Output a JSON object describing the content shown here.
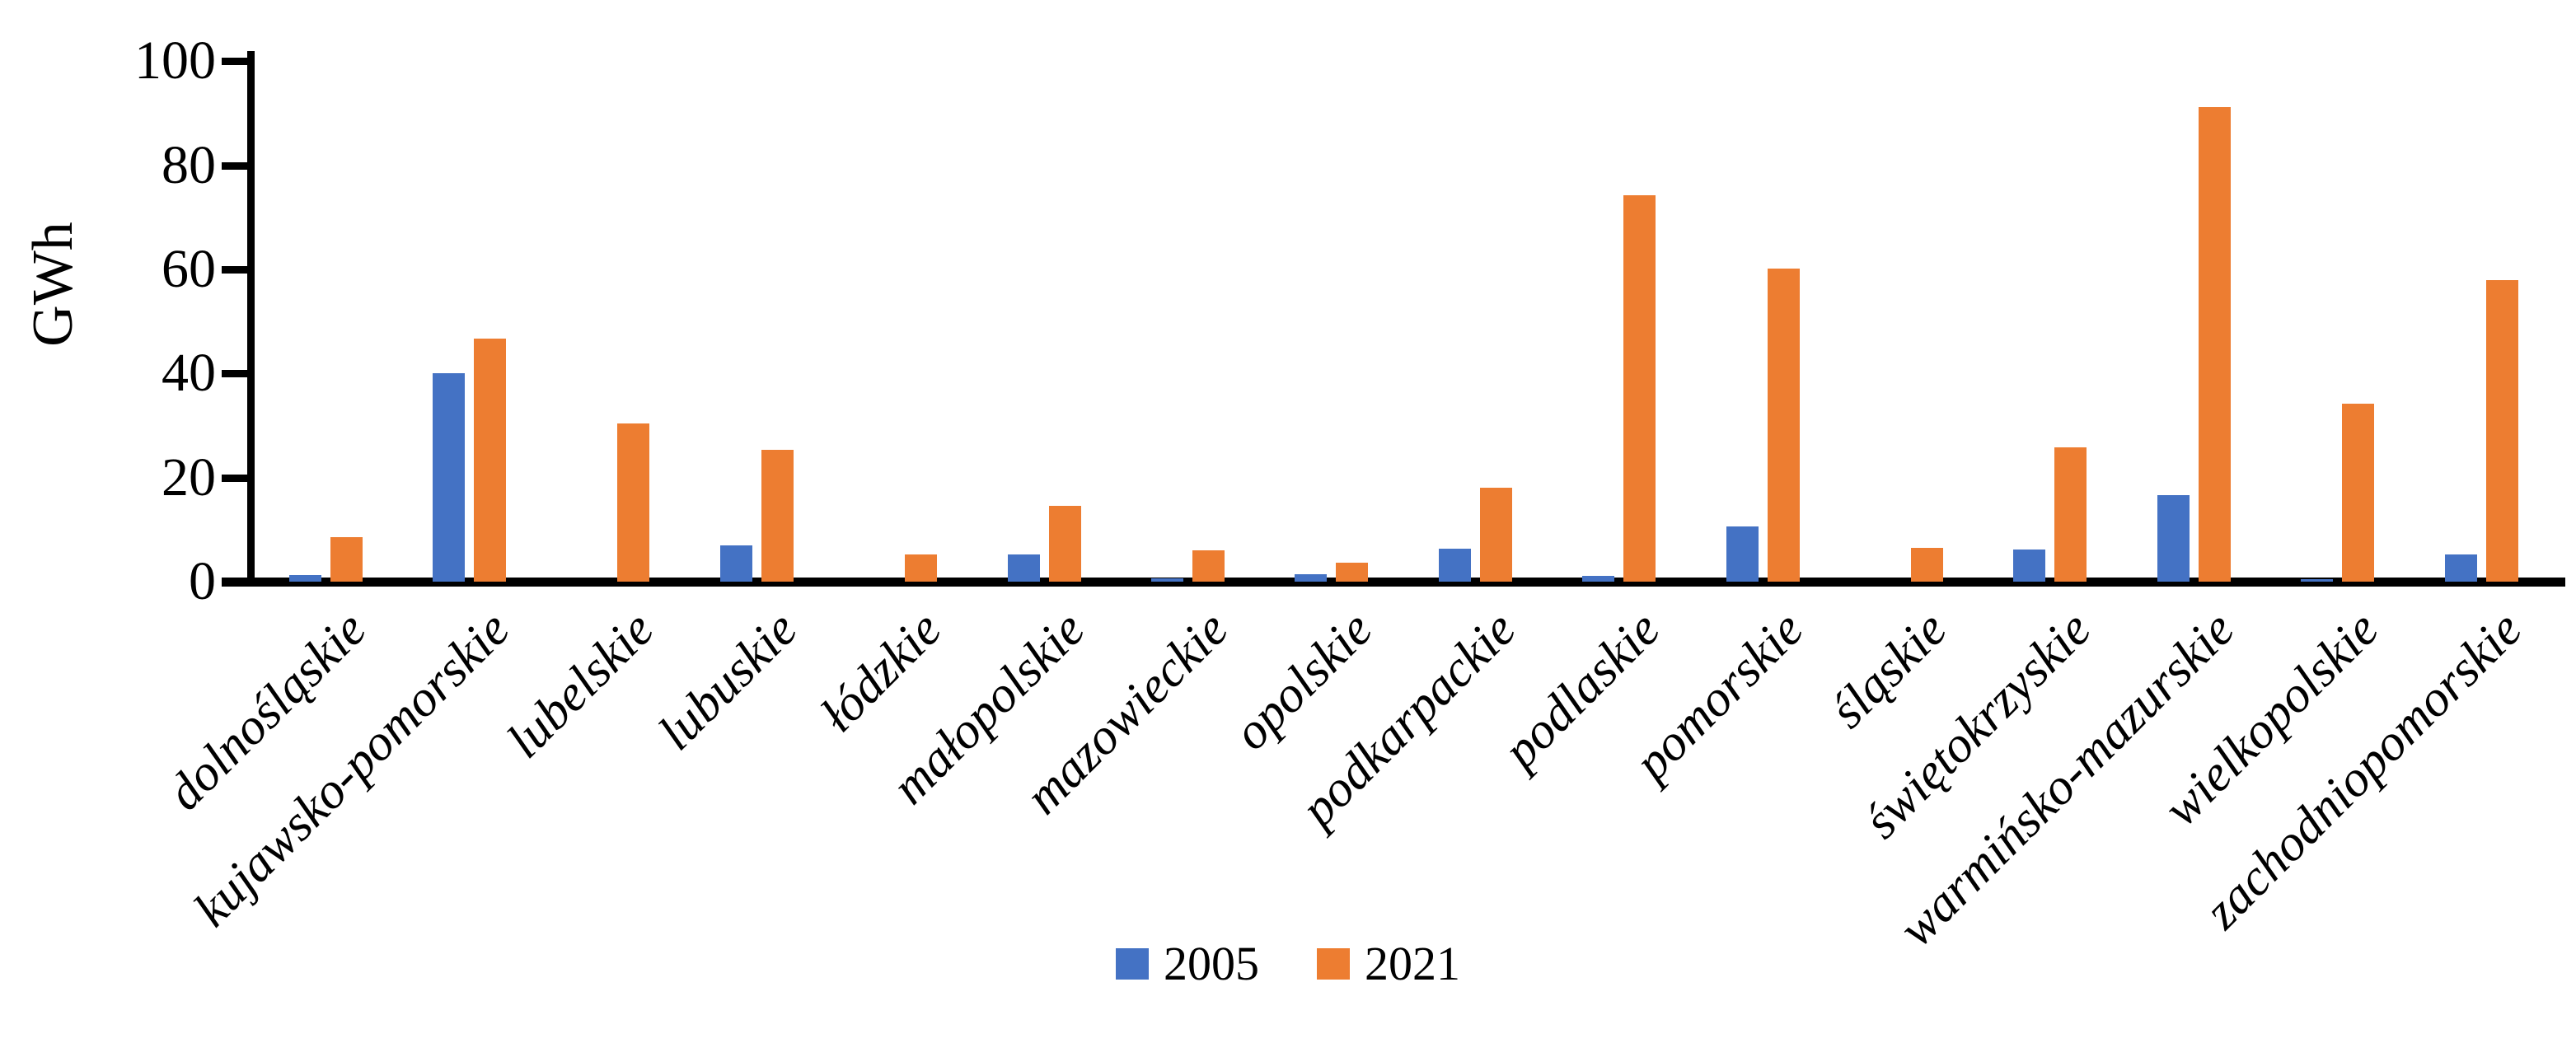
{
  "chart_data": {
    "type": "bar",
    "title": "",
    "xlabel": "",
    "ylabel": "GWh",
    "ylim": [
      0,
      100
    ],
    "y_ticks": [
      0,
      20,
      40,
      60,
      80,
      100
    ],
    "grid": false,
    "legend_position": "bottom-center",
    "categories": [
      "dolnośląskie",
      "kujawsko-pomorskie",
      "lubelskie",
      "lubuskie",
      "łódzkie",
      "małopolskie",
      "mazowieckie",
      "opolskie",
      "podkarpackie",
      "podlaskie",
      "pomorskie",
      "śląskie",
      "świętokrzyskie",
      "warmińsko-mazurskie",
      "wielkopolskie",
      "zachodniopomorskie"
    ],
    "series": [
      {
        "name": "2005",
        "color": "#4472C4",
        "values": [
          1.2,
          40,
          0,
          6.9,
          0,
          5.2,
          0.7,
          1.4,
          6.4,
          1.1,
          10.6,
          0,
          6.1,
          16.6,
          0.5,
          5.3
        ]
      },
      {
        "name": "2021",
        "color": "#ED7D31",
        "values": [
          8.6,
          46.7,
          30.4,
          25.4,
          5.3,
          14.5,
          6.0,
          3.6,
          18.1,
          74.3,
          60.2,
          6.5,
          25.8,
          91.2,
          34.2,
          58.0
        ]
      }
    ],
    "axis_color": "#000000"
  }
}
